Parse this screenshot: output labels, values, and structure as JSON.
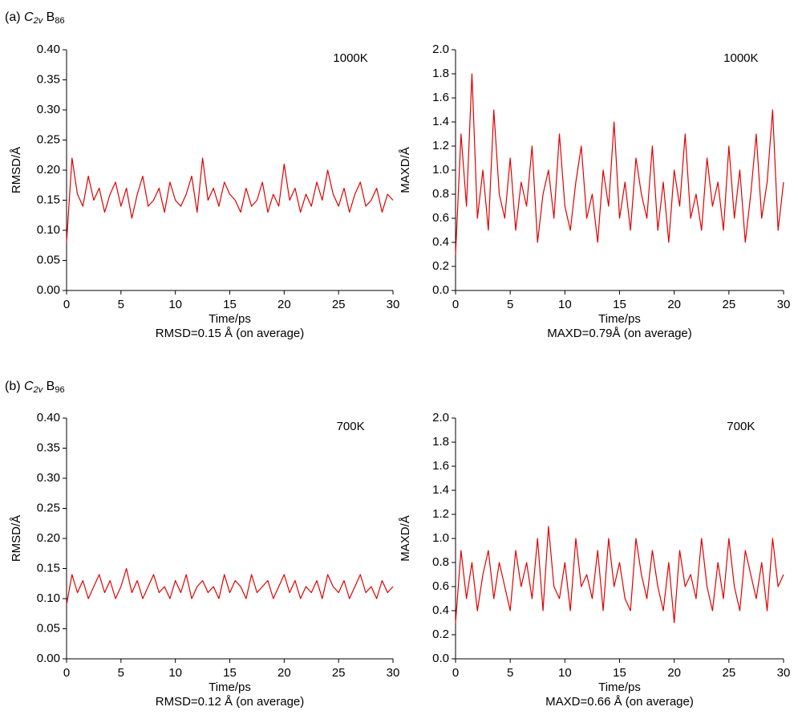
{
  "panels": [
    {
      "prefix": "(a)",
      "symbol": "C",
      "symbol_sub": "2v",
      "element": "B",
      "element_sub": "86"
    },
    {
      "prefix": "(b)",
      "symbol": "C",
      "symbol_sub": "2v",
      "element": "B",
      "element_sub": "96"
    }
  ],
  "chart_data": [
    {
      "type": "line",
      "ylabel": "RMSD/Å",
      "xlabel": "Time/ps",
      "annotation": "1000K",
      "caption": "RMSD=0.15 Å (on average)",
      "color": "#e00000",
      "xlim": [
        0,
        30
      ],
      "xticks": [
        0,
        5,
        10,
        15,
        20,
        25,
        30
      ],
      "ylim": [
        0,
        0.4
      ],
      "yticks": [
        {
          "value": 0,
          "label": "0.00"
        },
        0.05,
        {
          "value": 0.1,
          "label": "0.10"
        },
        0.15,
        {
          "value": 0.2,
          "label": "0.20"
        },
        0.25,
        {
          "value": 0.3,
          "label": "0.30"
        },
        0.35,
        {
          "value": 0.4,
          "label": "0.40"
        }
      ],
      "x": [
        0,
        0.5,
        1,
        1.5,
        2,
        2.5,
        3,
        3.5,
        4,
        4.5,
        5,
        5.5,
        6,
        6.5,
        7,
        7.5,
        8,
        8.5,
        9,
        9.5,
        10,
        10.5,
        11,
        11.5,
        12,
        12.5,
        13,
        13.5,
        14,
        14.5,
        15,
        15.5,
        16,
        16.5,
        17,
        17.5,
        18,
        18.5,
        19,
        19.5,
        20,
        20.5,
        21,
        21.5,
        22,
        22.5,
        23,
        23.5,
        24,
        24.5,
        25,
        25.5,
        26,
        26.5,
        27,
        27.5,
        28,
        28.5,
        29,
        29.5,
        30
      ],
      "values": [
        0.08,
        0.22,
        0.16,
        0.14,
        0.19,
        0.15,
        0.17,
        0.13,
        0.16,
        0.18,
        0.14,
        0.17,
        0.12,
        0.16,
        0.19,
        0.14,
        0.15,
        0.17,
        0.13,
        0.18,
        0.15,
        0.14,
        0.16,
        0.19,
        0.13,
        0.22,
        0.15,
        0.17,
        0.14,
        0.18,
        0.16,
        0.15,
        0.13,
        0.17,
        0.14,
        0.15,
        0.18,
        0.13,
        0.16,
        0.14,
        0.21,
        0.15,
        0.17,
        0.13,
        0.16,
        0.14,
        0.18,
        0.15,
        0.2,
        0.16,
        0.14,
        0.17,
        0.13,
        0.16,
        0.18,
        0.14,
        0.15,
        0.17,
        0.13,
        0.16,
        0.15
      ]
    },
    {
      "type": "line",
      "ylabel": "MAXD/Å",
      "xlabel": "Time/ps",
      "annotation": "1000K",
      "caption": "MAXD=0.79Å (on average)",
      "color": "#e00000",
      "xlim": [
        0,
        30
      ],
      "xticks": [
        0,
        5,
        10,
        15,
        20,
        25,
        30
      ],
      "ylim": [
        0,
        2
      ],
      "yticks": [
        {
          "value": 0,
          "label": "0.0"
        },
        0.2,
        0.4,
        0.6,
        0.8,
        {
          "value": 1,
          "label": "1.0"
        },
        1.2,
        1.4,
        1.6,
        1.8,
        {
          "value": 2,
          "label": "2.0"
        }
      ],
      "x": [
        0,
        0.5,
        1,
        1.5,
        2,
        2.5,
        3,
        3.5,
        4,
        4.5,
        5,
        5.5,
        6,
        6.5,
        7,
        7.5,
        8,
        8.5,
        9,
        9.5,
        10,
        10.5,
        11,
        11.5,
        12,
        12.5,
        13,
        13.5,
        14,
        14.5,
        15,
        15.5,
        16,
        16.5,
        17,
        17.5,
        18,
        18.5,
        19,
        19.5,
        20,
        20.5,
        21,
        21.5,
        22,
        22.5,
        23,
        23.5,
        24,
        24.5,
        25,
        25.5,
        26,
        26.5,
        27,
        27.5,
        28,
        28.5,
        29,
        29.5,
        30
      ],
      "values": [
        0.3,
        1.3,
        0.7,
        1.8,
        0.6,
        1.0,
        0.5,
        1.5,
        0.8,
        0.6,
        1.1,
        0.5,
        0.9,
        0.7,
        1.2,
        0.4,
        0.8,
        1.0,
        0.6,
        1.3,
        0.7,
        0.5,
        0.9,
        1.2,
        0.6,
        0.8,
        0.4,
        1.0,
        0.7,
        1.4,
        0.6,
        0.9,
        0.5,
        1.1,
        0.8,
        0.6,
        1.2,
        0.5,
        0.9,
        0.4,
        1.0,
        0.7,
        1.3,
        0.6,
        0.8,
        0.5,
        1.1,
        0.7,
        0.9,
        0.5,
        1.2,
        0.6,
        1.0,
        0.4,
        0.8,
        1.3,
        0.6,
        0.9,
        1.5,
        0.5,
        0.9
      ]
    },
    {
      "type": "line",
      "ylabel": "RMSD/Å",
      "xlabel": "Time/ps",
      "annotation": "700K",
      "caption": "RMSD=0.12 Å (on average)",
      "color": "#e00000",
      "xlim": [
        0,
        30
      ],
      "xticks": [
        0,
        5,
        10,
        15,
        20,
        25,
        30
      ],
      "ylim": [
        0,
        0.4
      ],
      "yticks": [
        {
          "value": 0,
          "label": "0.00"
        },
        0.05,
        {
          "value": 0.1,
          "label": "0.10"
        },
        0.15,
        {
          "value": 0.2,
          "label": "0.20"
        },
        0.25,
        {
          "value": 0.3,
          "label": "0.30"
        },
        0.35,
        {
          "value": 0.4,
          "label": "0.40"
        }
      ],
      "x": [
        0,
        0.5,
        1,
        1.5,
        2,
        2.5,
        3,
        3.5,
        4,
        4.5,
        5,
        5.5,
        6,
        6.5,
        7,
        7.5,
        8,
        8.5,
        9,
        9.5,
        10,
        10.5,
        11,
        11.5,
        12,
        12.5,
        13,
        13.5,
        14,
        14.5,
        15,
        15.5,
        16,
        16.5,
        17,
        17.5,
        18,
        18.5,
        19,
        19.5,
        20,
        20.5,
        21,
        21.5,
        22,
        22.5,
        23,
        23.5,
        24,
        24.5,
        25,
        25.5,
        26,
        26.5,
        27,
        27.5,
        28,
        28.5,
        29,
        29.5,
        30
      ],
      "values": [
        0.09,
        0.14,
        0.11,
        0.13,
        0.1,
        0.12,
        0.14,
        0.11,
        0.13,
        0.1,
        0.12,
        0.15,
        0.11,
        0.13,
        0.1,
        0.12,
        0.14,
        0.11,
        0.12,
        0.1,
        0.13,
        0.11,
        0.14,
        0.1,
        0.12,
        0.13,
        0.11,
        0.12,
        0.1,
        0.14,
        0.11,
        0.13,
        0.12,
        0.1,
        0.14,
        0.11,
        0.12,
        0.13,
        0.1,
        0.12,
        0.14,
        0.11,
        0.13,
        0.1,
        0.12,
        0.11,
        0.13,
        0.1,
        0.14,
        0.12,
        0.11,
        0.13,
        0.1,
        0.12,
        0.14,
        0.11,
        0.12,
        0.1,
        0.13,
        0.11,
        0.12
      ]
    },
    {
      "type": "line",
      "ylabel": "MAXD/Å",
      "xlabel": "Time/ps",
      "annotation": "700K",
      "caption": "MAXD=0.66 Å (on average)",
      "color": "#e00000",
      "xlim": [
        0,
        30
      ],
      "xticks": [
        0,
        5,
        10,
        15,
        20,
        25,
        30
      ],
      "ylim": [
        0,
        2
      ],
      "yticks": [
        {
          "value": 0,
          "label": "0.0"
        },
        0.2,
        0.4,
        0.6,
        0.8,
        {
          "value": 1,
          "label": "1.0"
        },
        1.2,
        1.4,
        1.6,
        1.8,
        {
          "value": 2,
          "label": "2.0"
        }
      ],
      "x": [
        0,
        0.5,
        1,
        1.5,
        2,
        2.5,
        3,
        3.5,
        4,
        4.5,
        5,
        5.5,
        6,
        6.5,
        7,
        7.5,
        8,
        8.5,
        9,
        9.5,
        10,
        10.5,
        11,
        11.5,
        12,
        12.5,
        13,
        13.5,
        14,
        14.5,
        15,
        15.5,
        16,
        16.5,
        17,
        17.5,
        18,
        18.5,
        19,
        19.5,
        20,
        20.5,
        21,
        21.5,
        22,
        22.5,
        23,
        23.5,
        24,
        24.5,
        25,
        25.5,
        26,
        26.5,
        27,
        27.5,
        28,
        28.5,
        29,
        29.5,
        30
      ],
      "values": [
        0.3,
        0.9,
        0.5,
        0.8,
        0.4,
        0.7,
        0.9,
        0.5,
        0.8,
        0.6,
        0.4,
        0.9,
        0.6,
        0.8,
        0.5,
        1.0,
        0.4,
        1.1,
        0.6,
        0.5,
        0.8,
        0.4,
        1.0,
        0.6,
        0.7,
        0.5,
        0.9,
        0.4,
        1.0,
        0.6,
        0.8,
        0.5,
        0.4,
        1.0,
        0.7,
        0.5,
        0.9,
        0.6,
        0.4,
        0.8,
        0.3,
        0.9,
        0.6,
        0.7,
        0.5,
        1.0,
        0.6,
        0.4,
        0.8,
        0.5,
        1.0,
        0.6,
        0.4,
        0.9,
        0.7,
        0.5,
        0.8,
        0.4,
        1.0,
        0.6,
        0.7
      ]
    }
  ]
}
